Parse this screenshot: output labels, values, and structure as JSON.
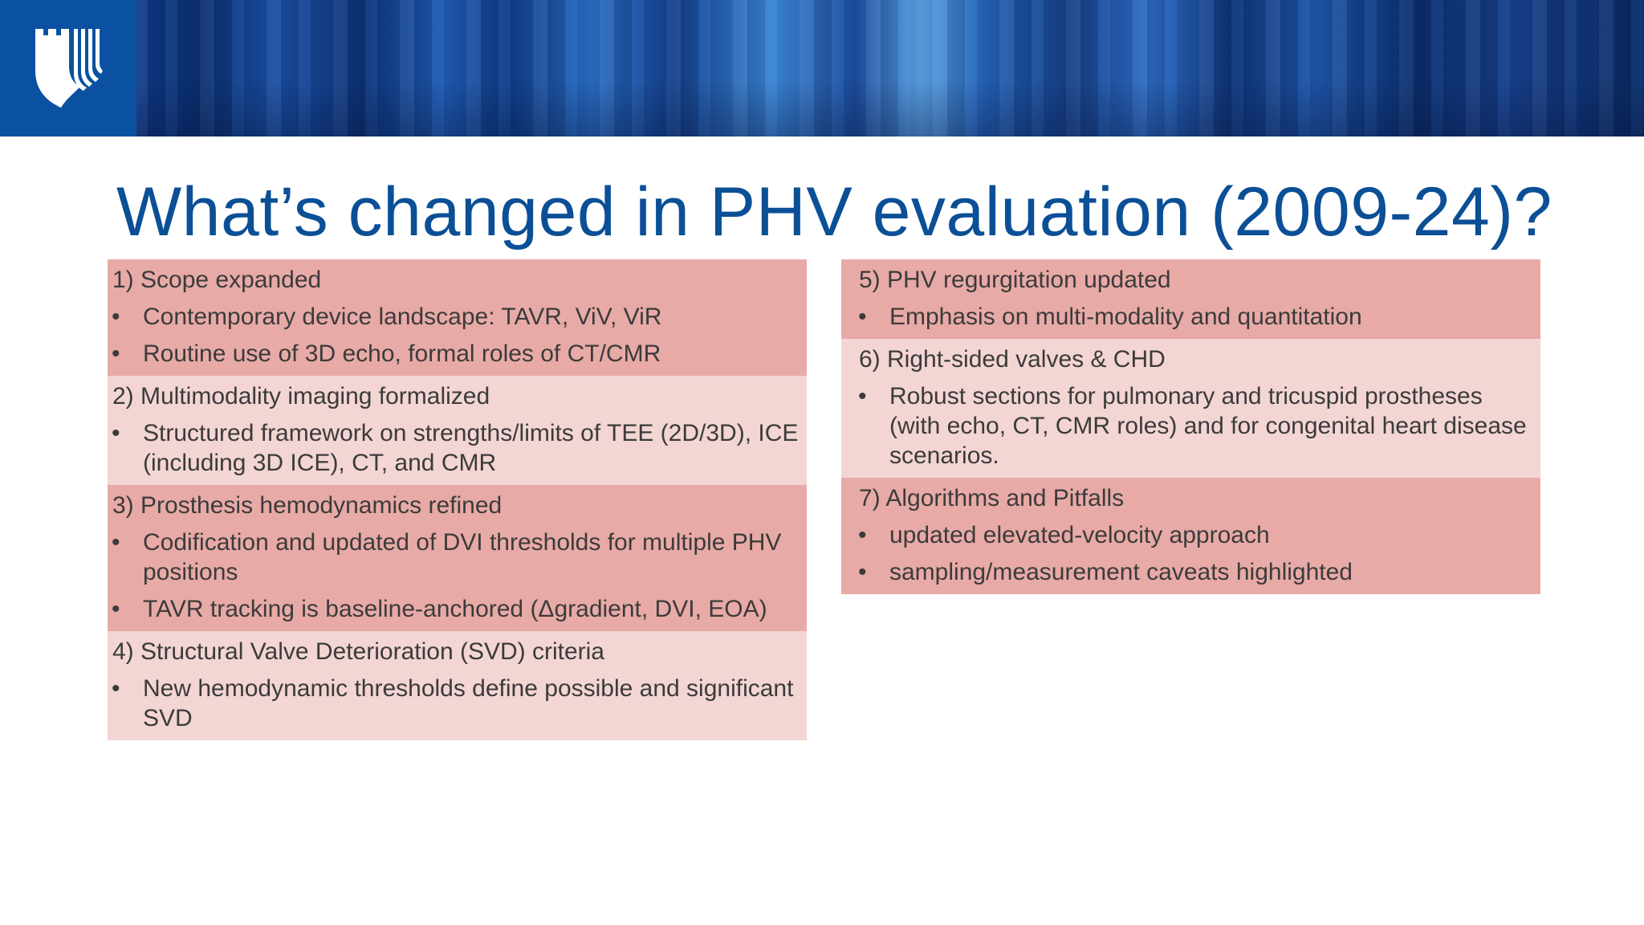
{
  "slide": {
    "title": "What’s changed in PHV evaluation (2009-24)?",
    "bullet_glyph": "•",
    "logo_icon": "duke-shield-logo-icon",
    "colors": {
      "title": "#0b4f96",
      "section_dark": "#e8aaa6",
      "section_light": "#f3d5d4",
      "logo_bg": "#0a52a1",
      "text": "#3b3b3b"
    }
  },
  "left_column": {
    "sections": [
      {
        "heading": "1) Scope expanded",
        "bullets": [
          "Contemporary device landscape: TAVR, ViV, ViR",
          "Routine use of 3D echo, formal roles of CT/CMR"
        ]
      },
      {
        "heading": "2) Multimodality imaging formalized",
        "bullets": [
          "Structured framework on strengths/limits of TEE (2D/3D), ICE (including 3D ICE), CT, and CMR"
        ]
      },
      {
        "heading": "3) Prosthesis hemodynamics refined",
        "bullets": [
          "Codification and updated of DVI thresholds for multiple PHV positions",
          "TAVR tracking is baseline-anchored (Δgradient, DVI, EOA)"
        ]
      },
      {
        "heading": "4) Structural Valve Deterioration (SVD) criteria",
        "bullets": [
          "New hemodynamic thresholds define possible and significant SVD"
        ]
      }
    ]
  },
  "right_column": {
    "sections": [
      {
        "heading": "5) PHV regurgitation updated",
        "bullets": [
          "Emphasis on multi-modality and quantitation"
        ]
      },
      {
        "heading": "6) Right-sided valves & CHD",
        "bullets": [
          "Robust sections for pulmonary and tricuspid prostheses (with echo, CT, CMR roles) and for congenital heart disease scenarios."
        ]
      },
      {
        "heading": "7) Algorithms and Pitfalls",
        "bullets": [
          "updated elevated-velocity approach",
          "sampling/measurement caveats highlighted"
        ]
      }
    ]
  }
}
